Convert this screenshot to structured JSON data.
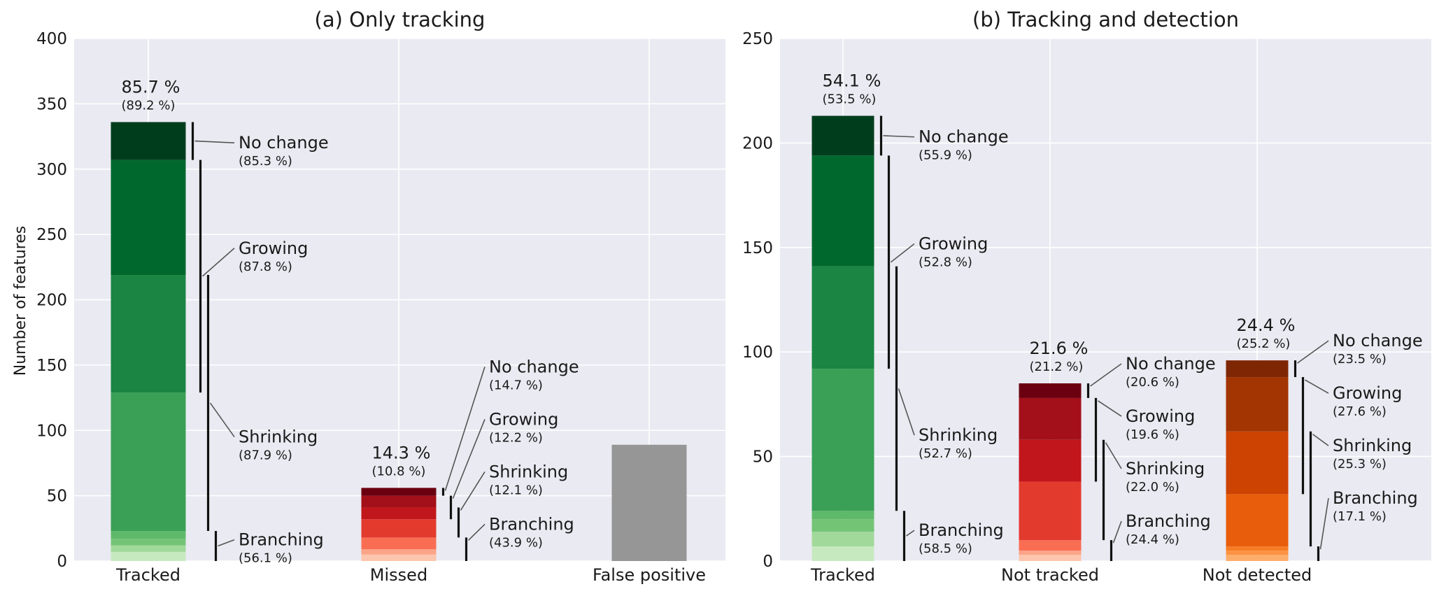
{
  "figure": {
    "ylabel": "Number of features"
  },
  "chart_data": [
    {
      "type": "bar",
      "title": "(a) Only tracking",
      "ylabel": "Number of features",
      "ylim": [
        0,
        400
      ],
      "yticks": [
        "0",
        "50",
        "100",
        "150",
        "200",
        "250",
        "300",
        "350",
        "400"
      ],
      "categories": [
        "Tracked",
        "Missed",
        "False positive"
      ],
      "grid": true,
      "bars": [
        {
          "category": "Tracked",
          "total": 336,
          "pct": "85.7 %",
          "pct_sub": "(89.2 %)",
          "segments": [
            {
              "value": 7,
              "color": "#c7e9c0"
            },
            {
              "value": 5,
              "color": "#a1d99b"
            },
            {
              "value": 5,
              "color": "#74c476"
            },
            {
              "value": 6,
              "color": "#5fb96a"
            },
            {
              "value": 106,
              "color": "#39a055"
            },
            {
              "value": 90,
              "color": "#1b8543"
            },
            {
              "value": 88,
              "color": "#00682c"
            },
            {
              "value": 29,
              "color": "#003d1d"
            }
          ],
          "groups": [
            {
              "label": "No change",
              "sub": "(85.3 %)"
            },
            {
              "label": "Growing",
              "sub": "(87.8 %)"
            },
            {
              "label": "Shrinking",
              "sub": "(87.9 %)"
            },
            {
              "label": "Branching",
              "sub": "(56.1 %)"
            }
          ]
        },
        {
          "category": "Missed",
          "total": 56,
          "pct": "14.3 %",
          "pct_sub": "(10.8 %)",
          "segments": [
            {
              "value": 5,
              "color": "#fdc5ad"
            },
            {
              "value": 4,
              "color": "#fca487"
            },
            {
              "value": 9,
              "color": "#f96e53"
            },
            {
              "value": 14,
              "color": "#e33a2e"
            },
            {
              "value": 9,
              "color": "#c1161b"
            },
            {
              "value": 9,
              "color": "#a31019"
            },
            {
              "value": 6,
              "color": "#6a0010"
            }
          ],
          "groups": [
            {
              "label": "No change",
              "sub": "(14.7 %)"
            },
            {
              "label": "Growing",
              "sub": "(12.2 %)"
            },
            {
              "label": "Shrinking",
              "sub": "(12.1 %)"
            },
            {
              "label": "Branching",
              "sub": "(43.9 %)"
            }
          ]
        },
        {
          "category": "False positive",
          "total": 89,
          "segments": [
            {
              "value": 89,
              "color": "#969696"
            }
          ],
          "groups": []
        }
      ]
    },
    {
      "type": "bar",
      "title": "(b) Tracking and detection",
      "ylim": [
        0,
        250
      ],
      "yticks": [
        "0",
        "50",
        "100",
        "150",
        "200",
        "250"
      ],
      "categories": [
        "Tracked",
        "Not tracked",
        "Not detected"
      ],
      "grid": true,
      "bars": [
        {
          "category": "Tracked",
          "total": 213,
          "pct": "54.1 %",
          "pct_sub": "(53.5 %)",
          "segments": [
            {
              "value": 7,
              "color": "#c7e9c0"
            },
            {
              "value": 7,
              "color": "#a1d99b"
            },
            {
              "value": 6,
              "color": "#74c476"
            },
            {
              "value": 4,
              "color": "#5fb96a"
            },
            {
              "value": 68,
              "color": "#39a055"
            },
            {
              "value": 49,
              "color": "#1b8543"
            },
            {
              "value": 53,
              "color": "#00682c"
            },
            {
              "value": 19,
              "color": "#003d1d"
            }
          ],
          "groups": [
            {
              "label": "No change",
              "sub": "(55.9 %)"
            },
            {
              "label": "Growing",
              "sub": "(52.8 %)"
            },
            {
              "label": "Shrinking",
              "sub": "(52.7 %)"
            },
            {
              "label": "Branching",
              "sub": "(58.5 %)"
            }
          ]
        },
        {
          "category": "Not tracked",
          "total": 85,
          "pct": "21.6 %",
          "pct_sub": "(21.2 %)",
          "segments": [
            {
              "value": 3,
              "color": "#fdc5ad"
            },
            {
              "value": 2,
              "color": "#fca487"
            },
            {
              "value": 5,
              "color": "#f96e53"
            },
            {
              "value": 28,
              "color": "#e33a2e"
            },
            {
              "value": 20,
              "color": "#c1161b"
            },
            {
              "value": 20,
              "color": "#a31019"
            },
            {
              "value": 7,
              "color": "#6a0010"
            }
          ],
          "groups": [
            {
              "label": "No change",
              "sub": "(20.6 %)"
            },
            {
              "label": "Growing",
              "sub": "(19.6 %)"
            },
            {
              "label": "Shrinking",
              "sub": "(22.0 %)"
            },
            {
              "label": "Branching",
              "sub": "(24.4 %)"
            }
          ]
        },
        {
          "category": "Not detected",
          "total": 96,
          "pct": "24.4 %",
          "pct_sub": "(25.2 %)",
          "segments": [
            {
              "value": 3,
              "color": "#fdae6b"
            },
            {
              "value": 2,
              "color": "#fd9243"
            },
            {
              "value": 2,
              "color": "#f67d26"
            },
            {
              "value": 25,
              "color": "#e85d0c"
            },
            {
              "value": 30,
              "color": "#cc4302"
            },
            {
              "value": 26,
              "color": "#a33503"
            },
            {
              "value": 8,
              "color": "#7f2704"
            }
          ],
          "groups": [
            {
              "label": "No change",
              "sub": "(23.5 %)"
            },
            {
              "label": "Growing",
              "sub": "(27.6 %)"
            },
            {
              "label": "Shrinking",
              "sub": "(25.3 %)"
            },
            {
              "label": "Branching",
              "sub": "(17.1 %)"
            }
          ]
        }
      ]
    }
  ]
}
